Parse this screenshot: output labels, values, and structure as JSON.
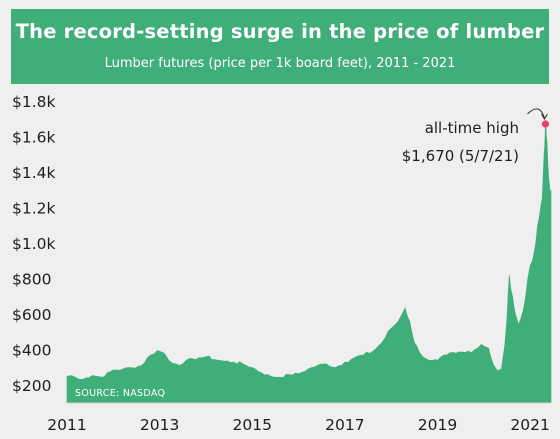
{
  "colors": {
    "header_bg": "#3fae79",
    "area": "#3fae79",
    "peak_marker": "#e8426a",
    "background": "#efefef"
  },
  "header": {
    "title": "The record-setting surge in the price of lumber",
    "subtitle": "Lumber futures (price per 1k board feet), 2011 - 2021"
  },
  "chart_data": {
    "type": "area",
    "title": "The record-setting surge in the price of lumber",
    "subtitle": "Lumber futures (price per 1k board feet), 2011 - 2021",
    "y_tick_labels": [
      "$200",
      "$400",
      "$600",
      "$800",
      "$1.0k",
      "$1.2k",
      "$1.4k",
      "$1.6k",
      "$1.8k"
    ],
    "y_tick_values": [
      200,
      400,
      600,
      800,
      1000,
      1200,
      1400,
      1600,
      1800
    ],
    "x_tick_labels": [
      "2011",
      "2013",
      "2015",
      "2017",
      "2019",
      "2021"
    ],
    "x_tick_values": [
      2011,
      2013,
      2015,
      2017,
      2019,
      2021
    ],
    "xlim": [
      2011,
      2021.45
    ],
    "ylim": [
      100,
      1850
    ],
    "grid": false,
    "series": [
      {
        "x": [
          2011.0,
          2011.1,
          2011.25,
          2011.4,
          2011.55,
          2011.75,
          2012.0,
          2012.2,
          2012.4,
          2012.6,
          2012.8,
          2012.95,
          2013.1,
          2013.2,
          2013.35,
          2013.5,
          2013.7,
          2013.85,
          2014.0,
          2014.2,
          2014.4,
          2014.6,
          2014.8,
          2015.0,
          2015.2,
          2015.4,
          2015.6,
          2015.8,
          2016.0,
          2016.2,
          2016.4,
          2016.6,
          2016.8,
          2017.0,
          2017.2,
          2017.4,
          2017.6,
          2017.8,
          2018.0,
          2018.15,
          2018.3,
          2018.4,
          2018.5,
          2018.6,
          2018.75,
          2018.9,
          2019.0,
          2019.2,
          2019.4,
          2019.6,
          2019.8,
          2019.95,
          2020.1,
          2020.2,
          2020.3,
          2020.38,
          2020.45,
          2020.5,
          2020.55,
          2020.62,
          2020.68,
          2020.75,
          2020.85,
          2020.95,
          2021.05,
          2021.12,
          2021.2,
          2021.26,
          2021.3,
          2021.33,
          2021.35,
          2021.38,
          2021.42,
          2021.45
        ],
        "y": [
          250,
          255,
          235,
          240,
          255,
          245,
          285,
          290,
          300,
          310,
          370,
          395,
          380,
          340,
          320,
          320,
          350,
          355,
          360,
          345,
          335,
          330,
          320,
          300,
          270,
          250,
          245,
          260,
          265,
          290,
          310,
          320,
          300,
          330,
          355,
          370,
          390,
          440,
          520,
          560,
          635,
          560,
          440,
          390,
          350,
          340,
          340,
          370,
          380,
          385,
          400,
          430,
          410,
          320,
          280,
          290,
          420,
          580,
          820,
          700,
          600,
          540,
          620,
          800,
          900,
          1000,
          1150,
          1250,
          1500,
          1670,
          1600,
          1450,
          1320,
          1300
        ]
      }
    ],
    "annotations": [
      {
        "label": "all-time high",
        "x": 2021.33,
        "y": 1670
      },
      {
        "label": "$1,670 (5/7/21)",
        "x": 2021.33,
        "y": 1670
      }
    ],
    "source_note": "SOURCE: NASDAQ"
  }
}
